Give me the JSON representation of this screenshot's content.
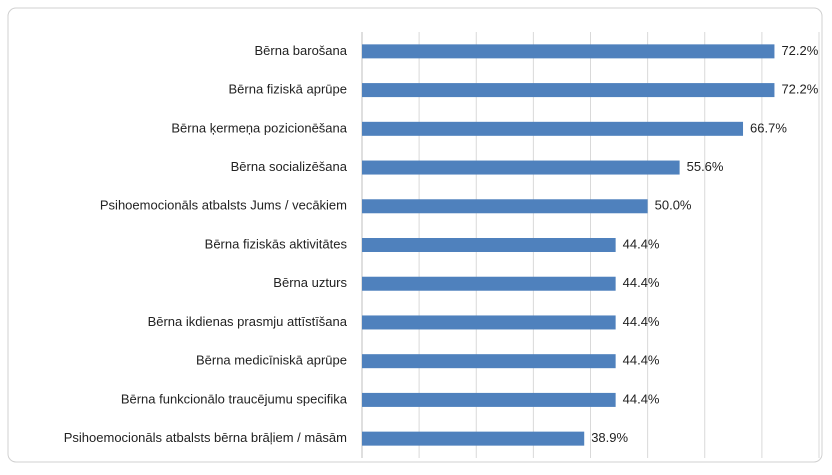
{
  "chart_data": {
    "type": "bar",
    "orientation": "horizontal",
    "categories": [
      "Bērna barošana",
      "Bērna fiziskā aprūpe",
      "Bērna ķermeņa pozicionēšana",
      "Bērna socializēšana",
      "Psihoemocionāls atbalsts Jums / vecākiem",
      "Bērna fiziskās aktivitātes",
      "Bērna uzturs",
      "Bērna ikdienas prasmju attīstīšana",
      "Bērna medicīniskā aprūpe",
      "Bērna funkcionālo traucējumu specifika",
      "Psihoemocionāls atbalsts bērna brāļiem / māsām"
    ],
    "values": [
      72.2,
      72.2,
      66.7,
      55.6,
      50.0,
      44.4,
      44.4,
      44.4,
      44.4,
      44.4,
      38.9
    ],
    "value_labels": [
      "72.2%",
      "72.2%",
      "66.7%",
      "55.6%",
      "50.0%",
      "44.4%",
      "44.4%",
      "44.4%",
      "44.4%",
      "44.4%",
      "38.9%"
    ],
    "color": "#4f81bd",
    "xlim": [
      0,
      80
    ],
    "xticks": [
      0,
      10,
      20,
      30,
      40,
      50,
      60,
      70,
      80
    ],
    "grid": true
  }
}
